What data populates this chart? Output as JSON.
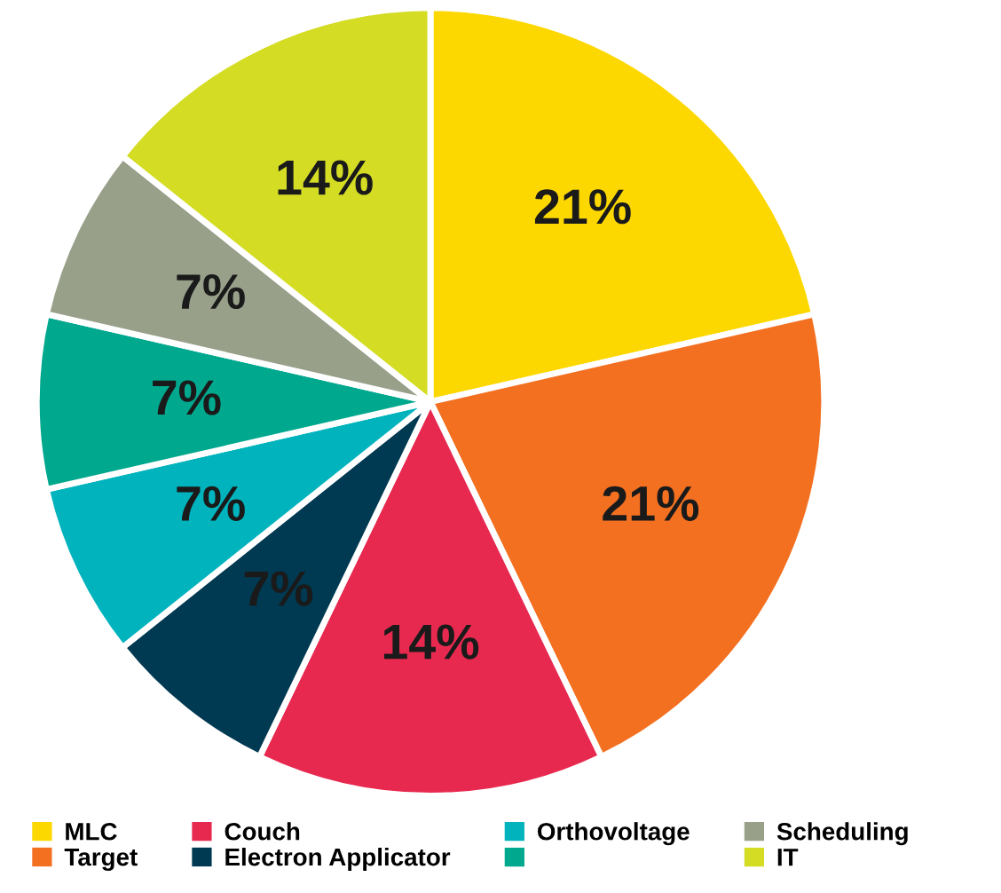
{
  "chart_data": {
    "type": "pie",
    "categories": [
      "MLC",
      "Target",
      "Couch",
      "Electron Applicator",
      "Orthovoltage",
      null,
      "Scheduling",
      "IT"
    ],
    "values": [
      21,
      21,
      14,
      7,
      7,
      7,
      7,
      14
    ],
    "colors": [
      "#fcd800",
      "#f37021",
      "#e8294f",
      "#003a52",
      "#00b3bd",
      "#00a88e",
      "#98a08a",
      "#d4dc23"
    ],
    "value_labels": [
      "21%",
      "21%",
      "14%",
      "7%",
      "7%",
      "7%",
      "7%",
      "14%"
    ],
    "legend": "bottom"
  }
}
